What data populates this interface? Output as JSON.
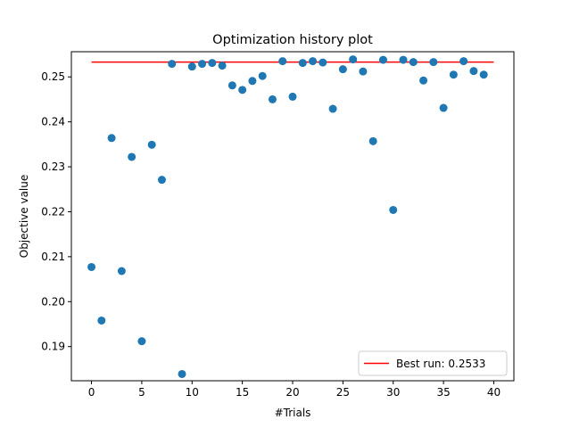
{
  "chart_data": {
    "type": "scatter",
    "title": "Optimization history plot",
    "xlabel": "#Trials",
    "ylabel": "Objective value",
    "xlim": [
      -2,
      42
    ],
    "ylim": [
      0.1824,
      0.2556
    ],
    "xticks": [
      0,
      5,
      10,
      15,
      20,
      25,
      30,
      35,
      40
    ],
    "yticks": [
      0.19,
      0.2,
      0.21,
      0.22,
      0.23,
      0.24,
      0.25
    ],
    "ytick_labels": [
      "0.19",
      "0.20",
      "0.21",
      "0.22",
      "0.23",
      "0.24",
      "0.25"
    ],
    "grid": false,
    "legend_position": "lower-right",
    "series": [
      {
        "kind": "scatter",
        "color": "#1f77b4",
        "points": [
          [
            0,
            0.2077
          ],
          [
            1,
            0.1958
          ],
          [
            2,
            0.2364
          ],
          [
            3,
            0.2068
          ],
          [
            4,
            0.2322
          ],
          [
            5,
            0.1912
          ],
          [
            6,
            0.2349
          ],
          [
            7,
            0.2271
          ],
          [
            8,
            0.2529
          ],
          [
            9,
            0.1839
          ],
          [
            10,
            0.2523
          ],
          [
            11,
            0.2529
          ],
          [
            12,
            0.2531
          ],
          [
            13,
            0.2525
          ],
          [
            14,
            0.2481
          ],
          [
            15,
            0.2471
          ],
          [
            16,
            0.2491
          ],
          [
            17,
            0.2502
          ],
          [
            18,
            0.245
          ],
          [
            19,
            0.2535
          ],
          [
            20,
            0.2456
          ],
          [
            21,
            0.2531
          ],
          [
            22,
            0.2535
          ],
          [
            23,
            0.2532
          ],
          [
            24,
            0.2429
          ],
          [
            25,
            0.2517
          ],
          [
            26,
            0.2539
          ],
          [
            27,
            0.2512
          ],
          [
            28,
            0.2357
          ],
          [
            29,
            0.2538
          ],
          [
            30,
            0.2204
          ],
          [
            31,
            0.2538
          ],
          [
            32,
            0.2533
          ],
          [
            33,
            0.2492
          ],
          [
            34,
            0.2533
          ],
          [
            35,
            0.2431
          ],
          [
            36,
            0.2505
          ],
          [
            37,
            0.2535
          ],
          [
            38,
            0.2513
          ],
          [
            39,
            0.2505
          ]
        ]
      },
      {
        "kind": "line",
        "name": "Best run: 0.2533",
        "color": "#ff0000",
        "x": [
          0,
          40
        ],
        "y": [
          0.2533,
          0.2533
        ]
      }
    ]
  }
}
